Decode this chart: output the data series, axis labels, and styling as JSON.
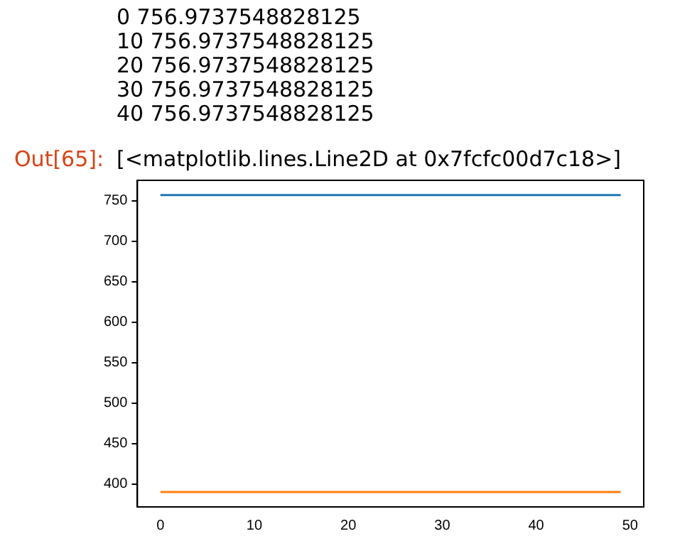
{
  "chart_data": {
    "type": "line",
    "annotations": [
      "0 756.9737548828125",
      "10 756.9737548828125",
      "20 756.9737548828125",
      "30 756.9737548828125",
      "40 756.9737548828125",
      "Out[65]:",
      "[<matplotlib.lines.Line2D at 0x7fcfc00d7c18>]"
    ],
    "x": [
      0,
      49
    ],
    "series": [
      {
        "color": "#1f77b4",
        "values": [
          757,
          757
        ]
      },
      {
        "color": "#ff7f0e",
        "values": [
          390,
          390
        ]
      }
    ],
    "xlim": [
      -2.45,
      51.45
    ],
    "xticks": [
      0,
      10,
      20,
      30,
      40,
      50
    ],
    "ylim": [
      371.6,
      775.3
    ],
    "yticks": [
      400,
      450,
      500,
      550,
      600,
      650,
      700,
      750
    ],
    "grid": false,
    "legend": false,
    "marker": "none",
    "line_style": "solid"
  }
}
